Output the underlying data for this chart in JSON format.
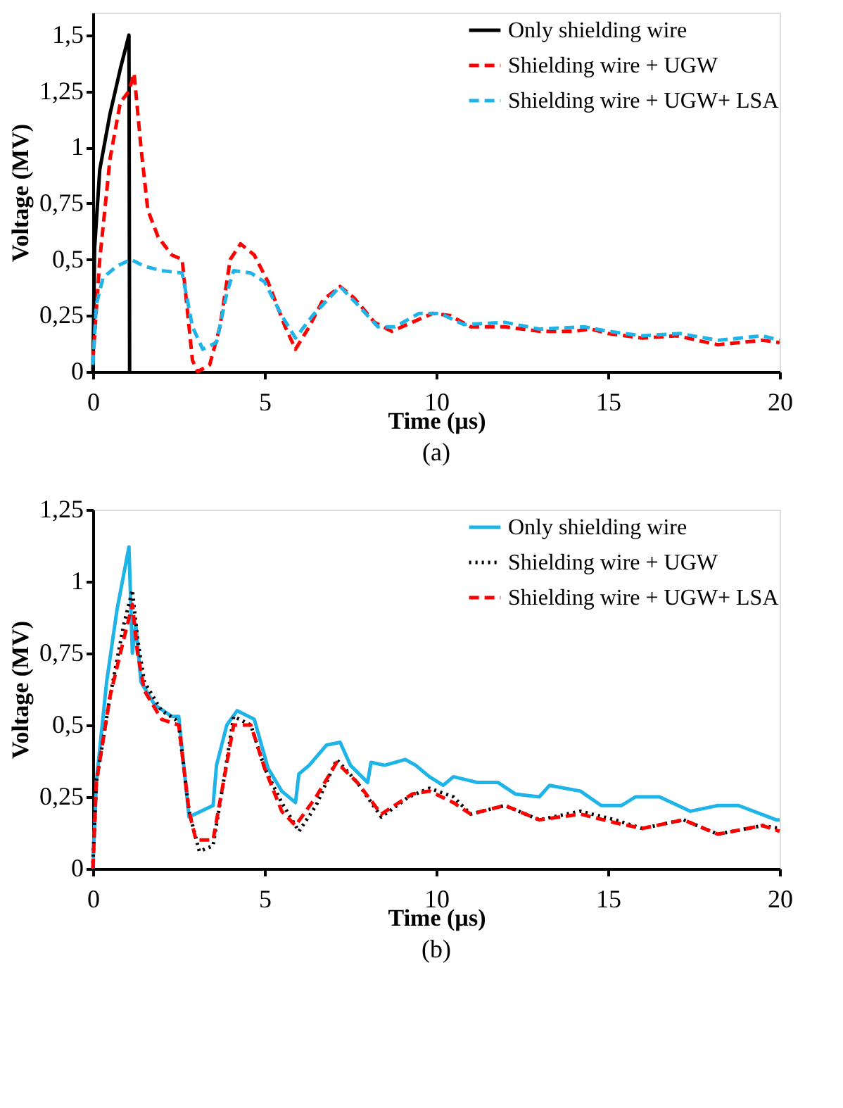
{
  "chart_data": [
    {
      "type": "line",
      "title": "(a)",
      "xlabel": "Time (µs)",
      "ylabel": "Voltage (MV)",
      "xlim": [
        0,
        20
      ],
      "xticks": [
        0,
        5,
        10,
        15,
        20
      ],
      "ylim": [
        0,
        1.6
      ],
      "yticks": [
        0,
        {
          "value": 0.25,
          "label": "0,25"
        },
        {
          "value": 0.5,
          "label": "0,5"
        },
        {
          "value": 0.75,
          "label": "0,75"
        },
        1,
        {
          "value": 1.25,
          "label": "1,25"
        },
        {
          "value": 1.5,
          "label": "1,5"
        }
      ],
      "grid": false,
      "legend": "top right",
      "series": [
        {
          "name": "Only shielding wire",
          "color": "#000000",
          "line_style": "solid",
          "x": [
            0,
            0.05,
            0.2,
            0.5,
            0.8,
            1.05,
            1.07
          ],
          "values": [
            0,
            0.55,
            0.9,
            1.15,
            1.35,
            1.5,
            0
          ]
        },
        {
          "name": "Shielding wire + UGW",
          "color": "#ff0000",
          "line_style": "dashed",
          "x": [
            0,
            0.2,
            0.5,
            0.8,
            1.05,
            1.2,
            1.4,
            1.6,
            1.9,
            2.3,
            2.6,
            2.9,
            3.05,
            3.4,
            3.7,
            4.0,
            4.3,
            4.7,
            5.1,
            5.6,
            5.9,
            6.3,
            6.7,
            7.2,
            7.6,
            8.2,
            8.7,
            9.3,
            9.9,
            10.4,
            11,
            12,
            13,
            14,
            14.5,
            15,
            16,
            17,
            18.2,
            19.5,
            20
          ],
          "values": [
            0.05,
            0.5,
            0.95,
            1.2,
            1.25,
            1.33,
            1.0,
            0.72,
            0.6,
            0.52,
            0.5,
            0.05,
            0,
            0.03,
            0.2,
            0.5,
            0.57,
            0.52,
            0.4,
            0.2,
            0.1,
            0.2,
            0.32,
            0.38,
            0.33,
            0.22,
            0.18,
            0.22,
            0.26,
            0.25,
            0.2,
            0.2,
            0.18,
            0.18,
            0.19,
            0.17,
            0.15,
            0.16,
            0.12,
            0.14,
            0.13
          ]
        },
        {
          "name": "Shielding wire + UGW+ LSA",
          "color": "#1fb4e8",
          "line_style": "dashed",
          "x": [
            0,
            0.1,
            0.3,
            0.7,
            1.1,
            1.5,
            2,
            2.6,
            2.9,
            3.2,
            3.6,
            3.9,
            4.1,
            4.6,
            5,
            5.5,
            5.9,
            6.4,
            7.2,
            7.7,
            8.3,
            8.8,
            9.5,
            10.1,
            10.8,
            12,
            13,
            14.3,
            15,
            16,
            17.1,
            18.2,
            19.5,
            20
          ],
          "values": [
            0.03,
            0.3,
            0.42,
            0.47,
            0.5,
            0.47,
            0.45,
            0.44,
            0.2,
            0.1,
            0.13,
            0.35,
            0.45,
            0.44,
            0.4,
            0.25,
            0.15,
            0.25,
            0.38,
            0.3,
            0.2,
            0.2,
            0.26,
            0.26,
            0.21,
            0.22,
            0.19,
            0.2,
            0.18,
            0.16,
            0.17,
            0.14,
            0.16,
            0.14
          ]
        }
      ]
    },
    {
      "type": "line",
      "title": "(b)",
      "xlabel": "Time (µs)",
      "ylabel": "Voltage (MV)",
      "xlim": [
        0,
        20
      ],
      "xticks": [
        0,
        5,
        10,
        15,
        20
      ],
      "ylim": [
        0,
        1.25
      ],
      "yticks": [
        0,
        {
          "value": 0.25,
          "label": "0,25"
        },
        {
          "value": 0.5,
          "label": "0,5"
        },
        {
          "value": 0.75,
          "label": "0,75"
        },
        1,
        {
          "value": 1.25,
          "label": "1,25"
        }
      ],
      "grid": false,
      "legend": "top right",
      "series": [
        {
          "name": "Only shielding wire",
          "color": "#1fb4e8",
          "line_style": "solid",
          "x": [
            0,
            0.1,
            0.4,
            0.7,
            1.05,
            1.15,
            1.25,
            1.4,
            1.8,
            2.3,
            2.5,
            2.8,
            3.5,
            3.6,
            3.9,
            4.2,
            4.7,
            5.1,
            5.5,
            5.9,
            6.0,
            6.3,
            6.8,
            7.2,
            7.5,
            8,
            8.1,
            8.5,
            9.1,
            9.4,
            9.8,
            10.2,
            10.5,
            11.2,
            11.8,
            12.3,
            13,
            13.3,
            14.2,
            14.8,
            15.4,
            15.8,
            16.5,
            17.4,
            18.2,
            18.8,
            19.9,
            20
          ],
          "values": [
            0,
            0.3,
            0.65,
            0.9,
            1.12,
            0.75,
            0.85,
            0.65,
            0.57,
            0.53,
            0.53,
            0.18,
            0.22,
            0.36,
            0.5,
            0.55,
            0.52,
            0.35,
            0.27,
            0.23,
            0.33,
            0.36,
            0.43,
            0.44,
            0.36,
            0.3,
            0.37,
            0.36,
            0.38,
            0.36,
            0.32,
            0.29,
            0.32,
            0.3,
            0.3,
            0.26,
            0.25,
            0.29,
            0.27,
            0.22,
            0.22,
            0.25,
            0.25,
            0.2,
            0.22,
            0.22,
            0.17,
            0.17
          ]
        },
        {
          "name": "Shielding wire + UGW",
          "color": "#000000",
          "line_style": "dotted",
          "x": [
            0,
            0.1,
            0.5,
            0.9,
            1.15,
            1.3,
            1.5,
            2,
            2.4,
            2.5,
            2.8,
            3.1,
            3.5,
            3.8,
            4.1,
            4.6,
            5,
            5.5,
            6,
            6.5,
            7.1,
            7.7,
            8.4,
            9.2,
            9.8,
            10.5,
            11,
            12,
            13,
            14.2,
            15.2,
            16,
            17.2,
            18.2,
            19.5,
            20
          ],
          "values": [
            0.02,
            0.3,
            0.6,
            0.85,
            0.97,
            0.8,
            0.65,
            0.55,
            0.52,
            0.5,
            0.2,
            0.06,
            0.08,
            0.3,
            0.53,
            0.5,
            0.35,
            0.23,
            0.13,
            0.22,
            0.38,
            0.3,
            0.18,
            0.25,
            0.28,
            0.25,
            0.19,
            0.22,
            0.17,
            0.2,
            0.17,
            0.14,
            0.17,
            0.12,
            0.15,
            0.14
          ]
        },
        {
          "name": "Shielding wire + UGW+ LSA",
          "color": "#ff0000",
          "line_style": "dashed",
          "x": [
            0,
            0.1,
            0.5,
            0.9,
            1.15,
            1.3,
            1.5,
            2,
            2.5,
            2.8,
            3.0,
            3.5,
            3.8,
            4.1,
            4.6,
            5,
            5.5,
            5.9,
            6.5,
            7.1,
            7.7,
            8.4,
            9.3,
            9.8,
            10.5,
            11,
            12,
            13,
            14.2,
            15.2,
            16,
            17.2,
            18.2,
            19.5,
            20
          ],
          "values": [
            0,
            0.3,
            0.6,
            0.8,
            0.92,
            0.75,
            0.62,
            0.52,
            0.5,
            0.2,
            0.1,
            0.1,
            0.3,
            0.5,
            0.5,
            0.35,
            0.2,
            0.15,
            0.25,
            0.37,
            0.3,
            0.19,
            0.26,
            0.27,
            0.23,
            0.19,
            0.22,
            0.17,
            0.19,
            0.16,
            0.14,
            0.17,
            0.12,
            0.15,
            0.13
          ]
        }
      ]
    }
  ]
}
